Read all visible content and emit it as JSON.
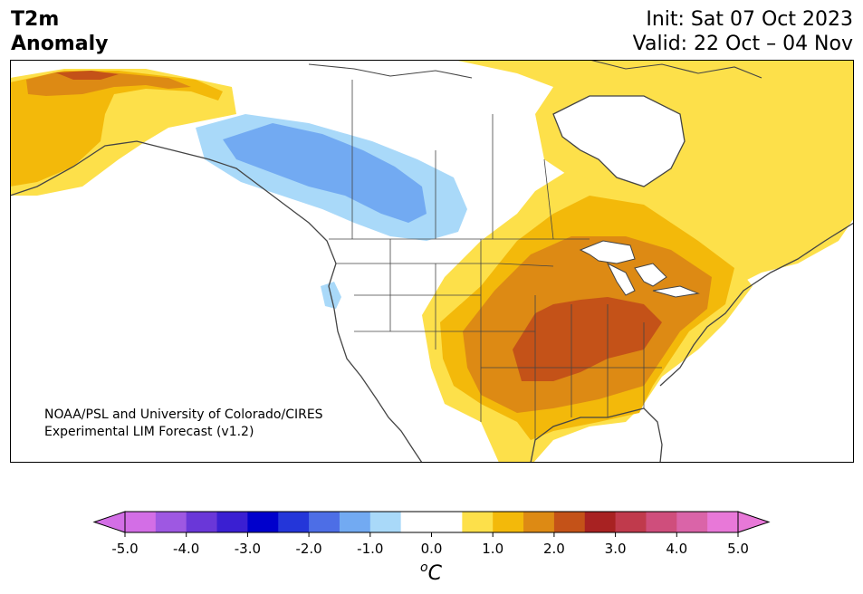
{
  "title": {
    "left_line1": "T2m",
    "left_line2": "Anomaly",
    "init": "Init: Sat 07 Oct 2023",
    "valid": "Valid: 22 Oct – 04 Nov"
  },
  "credit": {
    "line1": "NOAA/PSL and University of Colorado/CIRES",
    "line2": "Experimental LIM Forecast (v1.2)"
  },
  "colorbar": {
    "unit_base": "C",
    "unit_prefix": "o",
    "ticks": [
      "-5.0",
      "-4.0",
      "-3.0",
      "-2.0",
      "-1.0",
      "0.0",
      "1.0",
      "2.0",
      "3.0",
      "4.0",
      "5.0"
    ],
    "colors": [
      "#d36ee6",
      "#9e58e2",
      "#6a37d8",
      "#3a1fd2",
      "#0000cc",
      "#2436d9",
      "#4d6ee6",
      "#72aaf2",
      "#a9d9f9",
      "#ffffff",
      "#ffffff",
      "#fde04a",
      "#f3b90a",
      "#dd8a14",
      "#c45218",
      "#a82222",
      "#c03a4c",
      "#cf4e7c",
      "#da64a8",
      "#e878d8"
    ],
    "under_color": "#d36ee6",
    "over_color": "#e878d8"
  },
  "legend_colors": {
    "warm_1": "#fde04a",
    "warm_2": "#f3b90a",
    "warm_3": "#dd8a14",
    "warm_4": "#c45218",
    "warm_5": "#a82222",
    "cold_1": "#a9d9f9",
    "cold_2": "#72aaf2",
    "land_outline": "#444444"
  }
}
